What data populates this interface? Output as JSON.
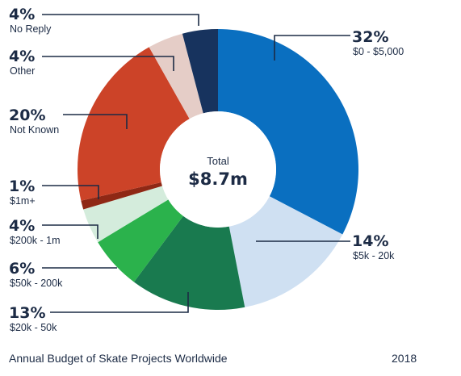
{
  "chart_data": {
    "type": "pie",
    "donut": true,
    "center_label": "Total",
    "center_value": "$8.7m",
    "slices": [
      {
        "percent_label": "32%",
        "label": "$0 - $5,000",
        "value": 32,
        "color": "#0a6fc0"
      },
      {
        "percent_label": "14%",
        "label": "$5k - 20k",
        "value": 14,
        "color": "#cfe0f2"
      },
      {
        "percent_label": "13%",
        "label": "$20k - 50k",
        "value": 13,
        "color": "#197a4f"
      },
      {
        "percent_label": "6%",
        "label": "$50k - 200k",
        "value": 6,
        "color": "#2bb24c"
      },
      {
        "percent_label": "4%",
        "label": "$200k - 1m",
        "value": 4,
        "color": "#d4ecdc"
      },
      {
        "percent_label": "1%",
        "label": "$1m+",
        "value": 1,
        "color": "#8f2815"
      },
      {
        "percent_label": "20%",
        "label": "Not Known",
        "value": 20,
        "color": "#cc4328"
      },
      {
        "percent_label": "4%",
        "label": "Other",
        "value": 4,
        "color": "#e5cdc7"
      },
      {
        "percent_label": "4%",
        "label": "No Reply",
        "value": 4,
        "color": "#17335e"
      }
    ],
    "legend": "callouts"
  },
  "footer": {
    "title": "Annual Budget of Skate Projects Worldwide",
    "year": "2018"
  }
}
